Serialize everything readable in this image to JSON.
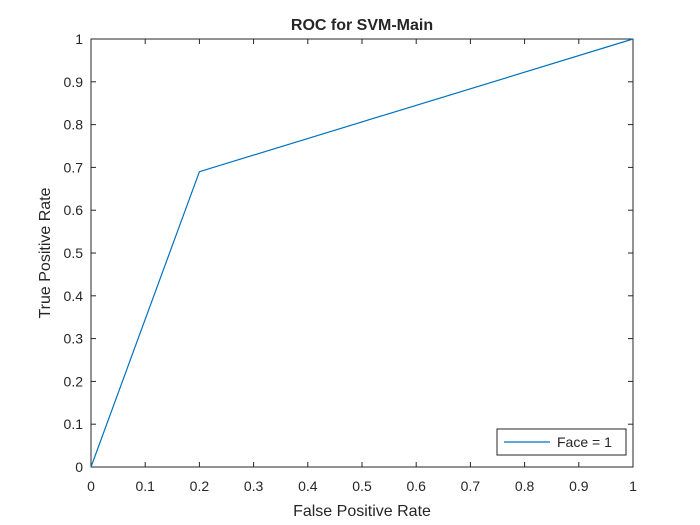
{
  "chart_data": {
    "type": "line",
    "title": "ROC for SVM-Main",
    "xlabel": "False Positive Rate",
    "ylabel": "True Positive Rate",
    "xlim": [
      0,
      1
    ],
    "ylim": [
      0,
      1
    ],
    "xticks": [
      "0",
      "0.1",
      "0.2",
      "0.3",
      "0.4",
      "0.5",
      "0.6",
      "0.7",
      "0.8",
      "0.9",
      "1"
    ],
    "yticks": [
      "0",
      "0.1",
      "0.2",
      "0.3",
      "0.4",
      "0.5",
      "0.6",
      "0.7",
      "0.8",
      "0.9",
      "1"
    ],
    "grid": false,
    "legend_position": "bottom-right",
    "series": [
      {
        "name": "Face = 1",
        "color": "#0072BD",
        "x": [
          0,
          0.2,
          1
        ],
        "y": [
          0,
          0.69,
          1
        ]
      }
    ]
  }
}
